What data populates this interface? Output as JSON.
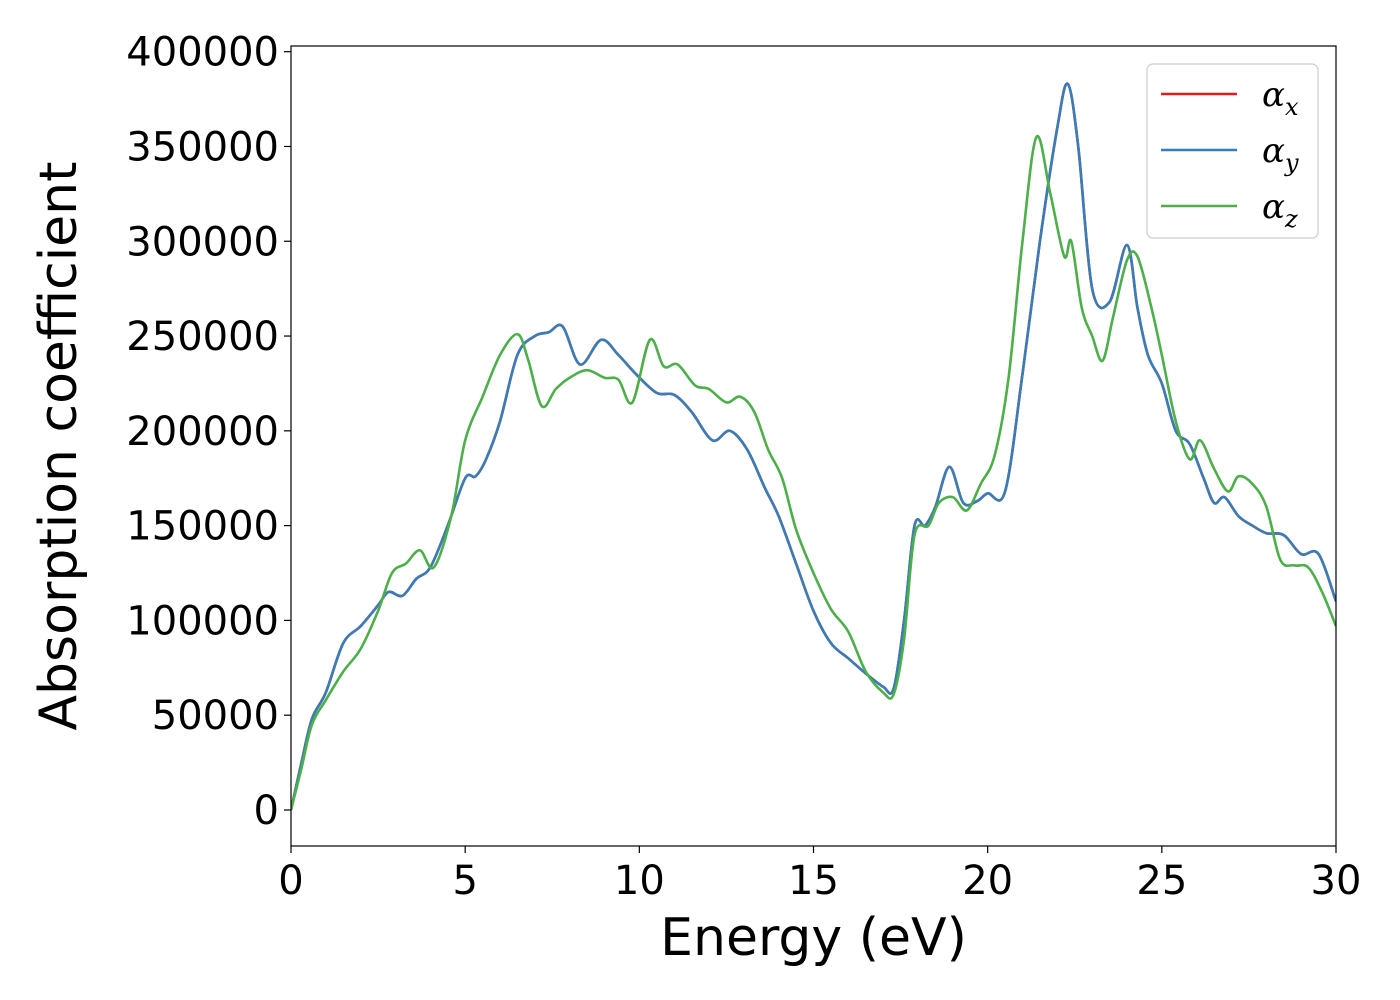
{
  "chart_data": {
    "type": "line",
    "title": "",
    "xlabel": "Energy (eV)",
    "ylabel": "Absorption coefficient",
    "xlim": [
      0,
      30
    ],
    "ylim": [
      -19000,
      403000
    ],
    "xticks": [
      0,
      5,
      10,
      15,
      20,
      25,
      30
    ],
    "xtick_labels": [
      "0",
      "5",
      "10",
      "15",
      "20",
      "25",
      "30"
    ],
    "yticks": [
      0,
      50000,
      100000,
      150000,
      200000,
      250000,
      300000,
      350000,
      400000
    ],
    "ytick_labels": [
      "0",
      "50000",
      "100000",
      "150000",
      "200000",
      "250000",
      "300000",
      "350000",
      "400000"
    ],
    "grid": false,
    "legend_position": "top-right",
    "series": [
      {
        "name": "α_x",
        "legend_symbol": "α",
        "legend_subscript": "x",
        "color": "#e41a1c",
        "x": [
          0,
          0.3,
          0.6,
          1.0,
          1.5,
          2.0,
          2.5,
          2.8,
          3.2,
          3.6,
          4.0,
          4.5,
          5.0,
          5.3,
          5.6,
          6.0,
          6.5,
          7.0,
          7.4,
          7.8,
          8.3,
          8.9,
          9.4,
          9.9,
          10.5,
          11.0,
          11.5,
          12.1,
          12.6,
          13.1,
          13.6,
          14.0,
          14.5,
          15.0,
          15.5,
          16.0,
          16.5,
          17.0,
          17.3,
          17.6,
          17.9,
          18.2,
          18.5,
          18.9,
          19.3,
          19.7,
          20.0,
          20.5,
          21.0,
          21.5,
          22.0,
          22.3,
          22.6,
          23.0,
          23.5,
          24.0,
          24.3,
          24.6,
          25.0,
          25.4,
          25.8,
          26.2,
          26.5,
          26.8,
          27.2,
          27.6,
          28.0,
          28.5,
          29.0,
          29.5,
          30.0
        ],
        "y": [
          0,
          25000,
          48000,
          62000,
          88000,
          97000,
          108000,
          115000,
          113000,
          122000,
          128000,
          150000,
          175000,
          176000,
          185000,
          205000,
          240000,
          250000,
          252000,
          255000,
          235000,
          248000,
          240000,
          230000,
          220000,
          219000,
          210000,
          195000,
          200000,
          190000,
          170000,
          155000,
          130000,
          105000,
          88000,
          80000,
          72000,
          65000,
          64000,
          100000,
          150000,
          150000,
          160000,
          181000,
          162000,
          163000,
          167000,
          168000,
          230000,
          300000,
          360000,
          383000,
          350000,
          275000,
          268000,
          298000,
          265000,
          240000,
          225000,
          200000,
          193000,
          175000,
          162000,
          165000,
          155000,
          150000,
          146000,
          145000,
          135000,
          135000,
          110000
        ]
      },
      {
        "name": "α_y",
        "legend_symbol": "α",
        "legend_subscript": "y",
        "color": "#377eb8",
        "x": [
          0,
          0.3,
          0.6,
          1.0,
          1.5,
          2.0,
          2.5,
          2.8,
          3.2,
          3.6,
          4.0,
          4.5,
          5.0,
          5.3,
          5.6,
          6.0,
          6.5,
          7.0,
          7.4,
          7.8,
          8.3,
          8.9,
          9.4,
          9.9,
          10.5,
          11.0,
          11.5,
          12.1,
          12.6,
          13.1,
          13.6,
          14.0,
          14.5,
          15.0,
          15.5,
          16.0,
          16.5,
          17.0,
          17.3,
          17.6,
          17.9,
          18.2,
          18.5,
          18.9,
          19.3,
          19.7,
          20.0,
          20.5,
          21.0,
          21.5,
          22.0,
          22.3,
          22.6,
          23.0,
          23.5,
          24.0,
          24.3,
          24.6,
          25.0,
          25.4,
          25.8,
          26.2,
          26.5,
          26.8,
          27.2,
          27.6,
          28.0,
          28.5,
          29.0,
          29.5,
          30.0
        ],
        "y": [
          0,
          25000,
          48000,
          62000,
          88000,
          97000,
          108000,
          115000,
          113000,
          122000,
          128000,
          150000,
          175000,
          176000,
          185000,
          205000,
          240000,
          250000,
          252000,
          255000,
          235000,
          248000,
          240000,
          230000,
          220000,
          219000,
          210000,
          195000,
          200000,
          190000,
          170000,
          155000,
          130000,
          105000,
          88000,
          80000,
          72000,
          65000,
          64000,
          100000,
          150000,
          150000,
          160000,
          181000,
          162000,
          163000,
          167000,
          168000,
          230000,
          300000,
          360000,
          383000,
          350000,
          275000,
          268000,
          298000,
          265000,
          240000,
          225000,
          200000,
          193000,
          175000,
          162000,
          165000,
          155000,
          150000,
          146000,
          145000,
          135000,
          135000,
          110000
        ]
      },
      {
        "name": "α_z",
        "legend_symbol": "α",
        "legend_subscript": "z",
        "color": "#4daf4a",
        "x": [
          0,
          0.3,
          0.6,
          1.0,
          1.5,
          2.0,
          2.5,
          2.9,
          3.3,
          3.7,
          4.1,
          4.6,
          5.0,
          5.5,
          6.0,
          6.5,
          6.8,
          7.2,
          7.6,
          8.0,
          8.5,
          9.0,
          9.4,
          9.8,
          10.3,
          10.7,
          11.1,
          11.6,
          12.0,
          12.5,
          12.9,
          13.3,
          13.7,
          14.1,
          14.5,
          15.0,
          15.5,
          16.0,
          16.5,
          17.0,
          17.3,
          17.6,
          17.9,
          18.3,
          18.6,
          19.0,
          19.4,
          19.8,
          20.2,
          20.6,
          21.0,
          21.4,
          21.8,
          22.2,
          22.4,
          22.7,
          23.0,
          23.3,
          23.6,
          24.0,
          24.3,
          24.7,
          25.0,
          25.4,
          25.8,
          26.1,
          26.5,
          26.9,
          27.2,
          27.6,
          28.0,
          28.4,
          28.8,
          29.2,
          29.6,
          30.0
        ],
        "y": [
          0,
          22000,
          45000,
          58000,
          73000,
          85000,
          105000,
          125000,
          130000,
          137000,
          128000,
          155000,
          195000,
          218000,
          240000,
          251000,
          238000,
          213000,
          222000,
          228000,
          232000,
          228000,
          227000,
          215000,
          248000,
          234000,
          235000,
          224000,
          222000,
          215000,
          218000,
          210000,
          190000,
          175000,
          148000,
          125000,
          106000,
          94000,
          73000,
          62000,
          61000,
          90000,
          145000,
          150000,
          162000,
          165000,
          158000,
          172000,
          187000,
          228000,
          300000,
          355000,
          325000,
          292000,
          300000,
          265000,
          250000,
          237000,
          260000,
          290000,
          292000,
          265000,
          240000,
          205000,
          185000,
          195000,
          180000,
          168000,
          176000,
          172000,
          160000,
          132000,
          129000,
          128000,
          115000,
          97000
        ]
      }
    ]
  }
}
